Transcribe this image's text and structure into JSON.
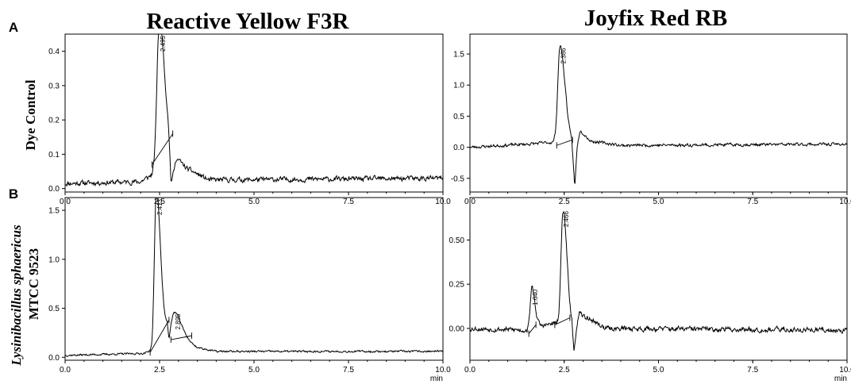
{
  "column_titles": [
    "Reactive Yellow F3R",
    "Joyfix Red RB"
  ],
  "panel_letters": [
    "A",
    "B"
  ],
  "row_labels": {
    "dye_control": "Dye Control",
    "organism_italic": "Lysinibacillus sphaericus",
    "organism_strain": "MTCC 9523"
  },
  "x_unit": "min",
  "colors": {
    "trace": "#000000",
    "background": "#ffffff"
  },
  "chart_data": [
    {
      "type": "line",
      "name": "Reactive Yellow F3R - Dye Control",
      "xlim": [
        0,
        10
      ],
      "ylim": [
        -0.01,
        0.45
      ],
      "xticks": [
        "0.0",
        "2.5",
        "5.0",
        "7.5",
        "10.0"
      ],
      "yticks": [
        "0.0",
        "0.1",
        "0.2",
        "0.3",
        "0.4"
      ],
      "xlabel": "min",
      "ylabel": "",
      "peaks": [
        {
          "rt": 2.495,
          "label": "2.495",
          "height": 0.43,
          "width": 0.09
        }
      ],
      "baseline_points": [
        [
          0,
          0.015
        ],
        [
          2.0,
          0.02
        ],
        [
          2.3,
          0.04
        ],
        [
          2.6,
          0.09
        ],
        [
          2.72,
          0.13
        ],
        [
          2.76,
          0.09
        ],
        [
          2.8,
          0.0
        ],
        [
          2.95,
          0.09
        ],
        [
          3.2,
          0.06
        ],
        [
          3.8,
          0.025
        ],
        [
          10,
          0.03
        ]
      ],
      "integration_lines": [
        {
          "from": [
            2.3,
            0.07
          ],
          "to": [
            2.85,
            0.16
          ]
        }
      ],
      "noise": 0.006,
      "seed": 11
    },
    {
      "type": "line",
      "name": "Joyfix Red RB - Dye Control",
      "xlim": [
        0,
        10
      ],
      "ylim": [
        -0.72,
        1.82
      ],
      "xticks": [
        "0.0",
        "2.5",
        "5.0",
        "7.5",
        "10.0"
      ],
      "yticks": [
        "-0.5",
        "0.0",
        "0.5",
        "1.0",
        "1.5"
      ],
      "xlabel": "min",
      "ylabel": "",
      "peaks": [
        {
          "rt": 2.386,
          "label": "2.386",
          "height": 1.4,
          "width": 0.08
        }
      ],
      "baseline_points": [
        [
          0,
          0.0
        ],
        [
          1.5,
          0.05
        ],
        [
          2.2,
          0.08
        ],
        [
          2.55,
          0.35
        ],
        [
          2.7,
          0.1
        ],
        [
          2.78,
          -0.65
        ],
        [
          2.84,
          0.0
        ],
        [
          2.92,
          0.28
        ],
        [
          3.2,
          0.1
        ],
        [
          4.0,
          0.03
        ],
        [
          10,
          0.05
        ]
      ],
      "integration_lines": [
        {
          "from": [
            2.3,
            0.03
          ],
          "to": [
            2.72,
            0.12
          ]
        }
      ],
      "noise": 0.02,
      "seed": 23
    },
    {
      "type": "line",
      "name": "Reactive Yellow F3R - Lysinibacillus sphaericus MTCC 9523",
      "xlim": [
        0,
        10
      ],
      "ylim": [
        -0.03,
        1.63
      ],
      "xticks": [
        "0.0",
        "2.5",
        "5.0",
        "7.5",
        "10.0"
      ],
      "yticks": [
        "0.0",
        "0.5",
        "1.0",
        "1.5"
      ],
      "xlabel": "min",
      "ylabel": "",
      "peaks": [
        {
          "rt": 2.413,
          "label": "2.413",
          "height": 1.52,
          "width": 0.07
        },
        {
          "rt": 2.895,
          "label": "2.895",
          "height": 0.28,
          "width": 0.12
        }
      ],
      "baseline_points": [
        [
          0,
          0.02
        ],
        [
          2.1,
          0.04
        ],
        [
          2.3,
          0.08
        ],
        [
          2.55,
          0.35
        ],
        [
          2.7,
          0.34
        ],
        [
          2.75,
          0.12
        ],
        [
          2.8,
          0.18
        ],
        [
          3.2,
          0.18
        ],
        [
          3.5,
          0.1
        ],
        [
          4.0,
          0.06
        ],
        [
          10,
          0.06
        ]
      ],
      "integration_lines": [
        {
          "from": [
            2.25,
            0.05
          ],
          "to": [
            2.75,
            0.38
          ]
        },
        {
          "from": [
            2.8,
            0.18
          ],
          "to": [
            3.35,
            0.22
          ]
        }
      ],
      "noise": 0.008,
      "seed": 37
    },
    {
      "type": "line",
      "name": "Joyfix Red RB - Lysinibacillus sphaericus MTCC 9523",
      "xlim": [
        0,
        10
      ],
      "ylim": [
        -0.18,
        0.74
      ],
      "xticks": [
        "0.0",
        "2.5",
        "5.0",
        "7.5",
        "10.0"
      ],
      "yticks": [
        "0.00",
        "0.25",
        "0.50"
      ],
      "xlabel": "min",
      "ylabel": "",
      "peaks": [
        {
          "rt": 1.64,
          "label": "1.640",
          "height": 0.23,
          "width": 0.06
        },
        {
          "rt": 2.466,
          "label": "2.466",
          "height": 0.62,
          "width": 0.07
        }
      ],
      "baseline_points": [
        [
          0,
          0.0
        ],
        [
          1.5,
          -0.01
        ],
        [
          1.8,
          0.01
        ],
        [
          2.3,
          0.03
        ],
        [
          2.6,
          0.07
        ],
        [
          2.7,
          0.02
        ],
        [
          2.76,
          -0.16
        ],
        [
          2.82,
          0.0
        ],
        [
          2.9,
          0.08
        ],
        [
          3.2,
          0.05
        ],
        [
          3.6,
          0.0
        ],
        [
          10,
          -0.01
        ]
      ],
      "integration_lines": [
        {
          "from": [
            1.56,
            -0.03
          ],
          "to": [
            1.75,
            0.02
          ]
        },
        {
          "from": [
            2.25,
            0.02
          ],
          "to": [
            2.65,
            0.06
          ]
        }
      ],
      "noise": 0.012,
      "seed": 53
    }
  ]
}
